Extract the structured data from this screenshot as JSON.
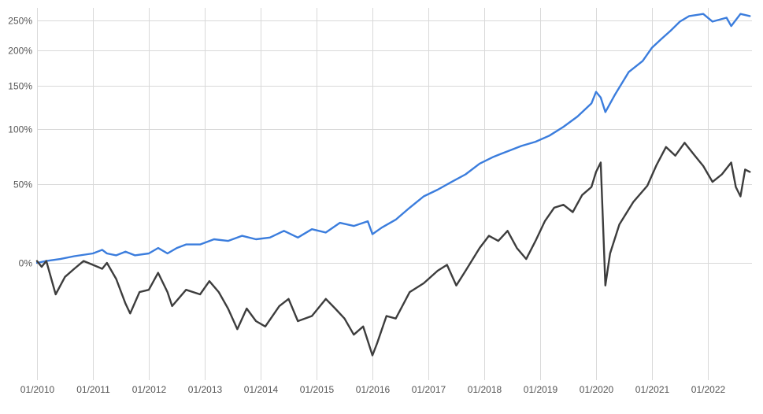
{
  "chart_data": {
    "type": "line",
    "title": "",
    "xlabel": "",
    "ylabel": "",
    "y_scale": "log",
    "y_unit": "cumulative return %",
    "grid": true,
    "legend": "none",
    "y_ticks": [
      {
        "value": 0,
        "label": "0%"
      },
      {
        "value": 50,
        "label": "50%"
      },
      {
        "value": 100,
        "label": "100%"
      },
      {
        "value": 150,
        "label": "150%"
      },
      {
        "value": 200,
        "label": "200%"
      },
      {
        "value": 250,
        "label": "250%"
      }
    ],
    "x_ticks": [
      {
        "value": "2010-01",
        "label": "01/2010"
      },
      {
        "value": "2011-01",
        "label": "01/2011"
      },
      {
        "value": "2012-01",
        "label": "01/2012"
      },
      {
        "value": "2013-01",
        "label": "01/2013"
      },
      {
        "value": "2014-01",
        "label": "01/2014"
      },
      {
        "value": "2015-01",
        "label": "01/2015"
      },
      {
        "value": "2016-01",
        "label": "01/2016"
      },
      {
        "value": "2017-01",
        "label": "01/2017"
      },
      {
        "value": "2018-01",
        "label": "01/2018"
      },
      {
        "value": "2019-01",
        "label": "01/2019"
      },
      {
        "value": "2020-01",
        "label": "01/2020"
      },
      {
        "value": "2021-01",
        "label": "01/2021"
      },
      {
        "value": "2022-01",
        "label": "01/2022"
      }
    ],
    "xlim": [
      "2010-01",
      "2022-10"
    ],
    "ylim": [
      -35,
      262
    ],
    "series": [
      {
        "color": "#3b7ddd",
        "points": [
          [
            "2010-01",
            0
          ],
          [
            "2010-03",
            1
          ],
          [
            "2010-06",
            2
          ],
          [
            "2010-09",
            3.5
          ],
          [
            "2011-01",
            5
          ],
          [
            "2011-03",
            7
          ],
          [
            "2011-04",
            5
          ],
          [
            "2011-06",
            4
          ],
          [
            "2011-08",
            6
          ],
          [
            "2011-10",
            4
          ],
          [
            "2012-01",
            5
          ],
          [
            "2012-03",
            8
          ],
          [
            "2012-05",
            5
          ],
          [
            "2012-07",
            8
          ],
          [
            "2012-09",
            10
          ],
          [
            "2012-12",
            10
          ],
          [
            "2013-03",
            13
          ],
          [
            "2013-06",
            12
          ],
          [
            "2013-09",
            15
          ],
          [
            "2013-12",
            13
          ],
          [
            "2014-03",
            14
          ],
          [
            "2014-06",
            18
          ],
          [
            "2014-09",
            14
          ],
          [
            "2014-12",
            19
          ],
          [
            "2015-03",
            17
          ],
          [
            "2015-06",
            23
          ],
          [
            "2015-09",
            21
          ],
          [
            "2015-12",
            24
          ],
          [
            "2016-01",
            16
          ],
          [
            "2016-03",
            20
          ],
          [
            "2016-06",
            25
          ],
          [
            "2016-09",
            33
          ],
          [
            "2016-12",
            41
          ],
          [
            "2017-03",
            46
          ],
          [
            "2017-06",
            52
          ],
          [
            "2017-09",
            58
          ],
          [
            "2017-12",
            67
          ],
          [
            "2018-03",
            73
          ],
          [
            "2018-06",
            78
          ],
          [
            "2018-09",
            83
          ],
          [
            "2018-12",
            87
          ],
          [
            "2019-03",
            93
          ],
          [
            "2019-06",
            102
          ],
          [
            "2019-09",
            113
          ],
          [
            "2019-12",
            128
          ],
          [
            "2020-01",
            142
          ],
          [
            "2020-02",
            135
          ],
          [
            "2020-03",
            118
          ],
          [
            "2020-05",
            138
          ],
          [
            "2020-08",
            168
          ],
          [
            "2020-11",
            184
          ],
          [
            "2021-01",
            204
          ],
          [
            "2021-03",
            218
          ],
          [
            "2021-05",
            232
          ],
          [
            "2021-07",
            248
          ],
          [
            "2021-09",
            258
          ],
          [
            "2021-12",
            262
          ],
          [
            "2022-02",
            248
          ],
          [
            "2022-05",
            255
          ],
          [
            "2022-06",
            240
          ],
          [
            "2022-08",
            262
          ],
          [
            "2022-10",
            258
          ]
        ]
      },
      {
        "color": "#3d3d3d",
        "points": [
          [
            "2010-01",
            1
          ],
          [
            "2010-02",
            -2
          ],
          [
            "2010-03",
            1
          ],
          [
            "2010-05",
            -15
          ],
          [
            "2010-07",
            -7
          ],
          [
            "2010-09",
            -3
          ],
          [
            "2010-11",
            1
          ],
          [
            "2011-01",
            -1
          ],
          [
            "2011-03",
            -3
          ],
          [
            "2011-04",
            0
          ],
          [
            "2011-06",
            -8
          ],
          [
            "2011-08",
            -19
          ],
          [
            "2011-09",
            -23
          ],
          [
            "2011-11",
            -14
          ],
          [
            "2012-01",
            -13
          ],
          [
            "2012-03",
            -5
          ],
          [
            "2012-05",
            -14
          ],
          [
            "2012-06",
            -20
          ],
          [
            "2012-09",
            -13
          ],
          [
            "2012-12",
            -15
          ],
          [
            "2013-02",
            -9
          ],
          [
            "2013-04",
            -14
          ],
          [
            "2013-06",
            -21
          ],
          [
            "2013-08",
            -29
          ],
          [
            "2013-10",
            -21
          ],
          [
            "2013-12",
            -26
          ],
          [
            "2014-02",
            -28
          ],
          [
            "2014-05",
            -20
          ],
          [
            "2014-07",
            -17
          ],
          [
            "2014-09",
            -26
          ],
          [
            "2014-12",
            -24
          ],
          [
            "2015-03",
            -17
          ],
          [
            "2015-05",
            -21
          ],
          [
            "2015-07",
            -25
          ],
          [
            "2015-09",
            -31
          ],
          [
            "2015-11",
            -28
          ],
          [
            "2016-01",
            -38
          ],
          [
            "2016-02",
            -34
          ],
          [
            "2016-04",
            -24
          ],
          [
            "2016-06",
            -25
          ],
          [
            "2016-09",
            -14
          ],
          [
            "2016-12",
            -10
          ],
          [
            "2017-03",
            -4
          ],
          [
            "2017-05",
            -1
          ],
          [
            "2017-07",
            -11
          ],
          [
            "2017-09",
            -4
          ],
          [
            "2017-12",
            8
          ],
          [
            "2018-02",
            15
          ],
          [
            "2018-04",
            12
          ],
          [
            "2018-06",
            18
          ],
          [
            "2018-08",
            8
          ],
          [
            "2018-10",
            2
          ],
          [
            "2018-12",
            12
          ],
          [
            "2019-02",
            24
          ],
          [
            "2019-04",
            33
          ],
          [
            "2019-06",
            35
          ],
          [
            "2019-08",
            30
          ],
          [
            "2019-10",
            42
          ],
          [
            "2019-12",
            48
          ],
          [
            "2020-01",
            60
          ],
          [
            "2020-02",
            68
          ],
          [
            "2020-03",
            -11
          ],
          [
            "2020-04",
            5
          ],
          [
            "2020-06",
            22
          ],
          [
            "2020-09",
            37
          ],
          [
            "2020-12",
            49
          ],
          [
            "2021-02",
            66
          ],
          [
            "2021-04",
            82
          ],
          [
            "2021-06",
            74
          ],
          [
            "2021-08",
            86
          ],
          [
            "2021-10",
            75
          ],
          [
            "2021-12",
            65
          ],
          [
            "2022-02",
            52
          ],
          [
            "2022-04",
            58
          ],
          [
            "2022-06",
            68
          ],
          [
            "2022-07",
            48
          ],
          [
            "2022-08",
            41
          ],
          [
            "2022-09",
            62
          ],
          [
            "2022-10",
            60
          ]
        ]
      }
    ]
  }
}
